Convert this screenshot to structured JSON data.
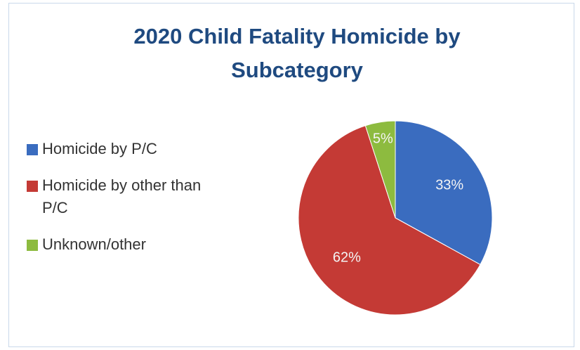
{
  "chart_data": {
    "type": "pie",
    "title": "2020 Child Fatality Homicide by Subcategory",
    "categories": [
      "Homicide by P/C",
      "Homicide by other than P/C",
      "Unknown/other"
    ],
    "values": [
      33,
      62,
      5
    ],
    "value_labels": [
      "33%",
      "62%",
      "5%"
    ],
    "colors": [
      "#3a6cbf",
      "#c43a35",
      "#8dbb3f"
    ],
    "legend": "left"
  }
}
